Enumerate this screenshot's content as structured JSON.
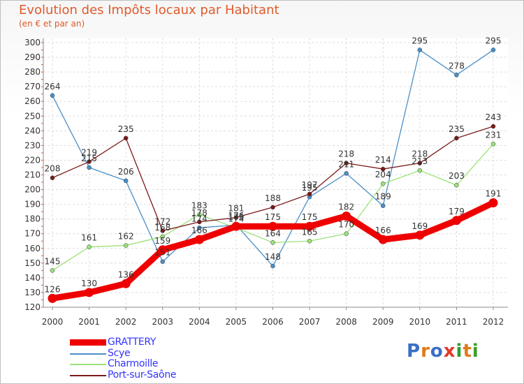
{
  "title": "Evolution des Impôts locaux par Habitant",
  "subtitle": "(en € et par an)",
  "logo": {
    "letters": [
      "P",
      "r",
      "o",
      "x",
      "i",
      "t",
      "i"
    ],
    "colors": [
      "#3a6fc4",
      "#e07a1a",
      "#3a6fc4",
      "#e03a2a",
      "#2a9e2a",
      "#e07a1a",
      "#3a9e2a"
    ]
  },
  "chart_data": {
    "type": "line",
    "x": [
      "2000",
      "2001",
      "2002",
      "2003",
      "2004",
      "2005",
      "2006",
      "2007",
      "2008",
      "2009",
      "2010",
      "2011",
      "2012"
    ],
    "ylim": [
      120,
      300
    ],
    "yticks": [
      "120",
      "130",
      "140",
      "150",
      "160",
      "170",
      "180",
      "190",
      "200",
      "210",
      "220",
      "230",
      "240",
      "250",
      "260",
      "270",
      "280",
      "290",
      "300"
    ],
    "grid": true,
    "legend_position": "bottom-left",
    "series": [
      {
        "name": "GRATTERY",
        "color": "#ee0000",
        "label_color": "#3333ff",
        "values": [
          126,
          130,
          136,
          159,
          166,
          175,
          175,
          175,
          182,
          166,
          169,
          179,
          191
        ]
      },
      {
        "name": "Scye",
        "color": "#4a90c8",
        "label_color": "#3333ff",
        "values": [
          264,
          215,
          206,
          151,
          174,
          176,
          148,
          195,
          211,
          189,
          295,
          278,
          295
        ]
      },
      {
        "name": "Charmoille",
        "color": "#9be27a",
        "label_color": "#3333ff",
        "values": [
          145,
          161,
          162,
          168,
          183,
          174,
          164,
          165,
          170,
          204,
          213,
          203,
          231
        ]
      },
      {
        "name": "Port-sur-Saône",
        "color": "#7a1a1a",
        "label_color": "#3333ff",
        "values": [
          208,
          219,
          235,
          172,
          178,
          181,
          188,
          197,
          218,
          214,
          218,
          235,
          243
        ]
      }
    ]
  }
}
